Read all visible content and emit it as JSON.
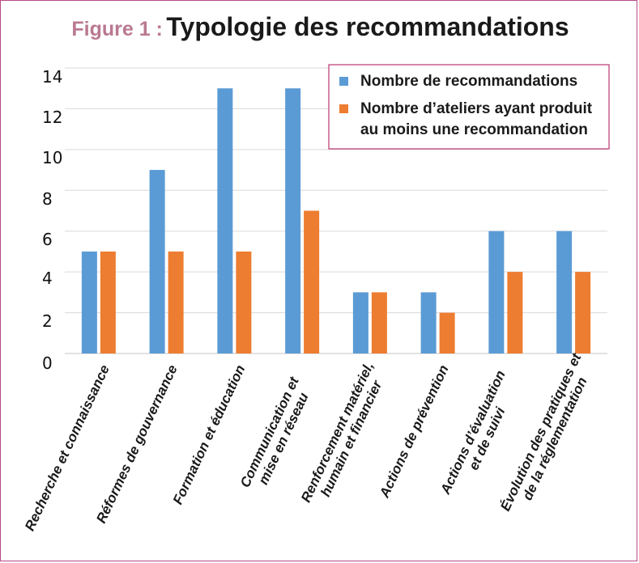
{
  "figure": {
    "label": "Figure 1 :",
    "title": "Typologie des recommandations"
  },
  "colors": {
    "series1": "#5b9bd5",
    "series2": "#ed7d31",
    "frame": "#b94a86",
    "label_accent": "#b97991",
    "grid": "#d9d9d9"
  },
  "chart_data": {
    "type": "bar",
    "title": "Typologie des recommandations",
    "xlabel": "",
    "ylabel": "",
    "ylim": [
      0,
      14
    ],
    "yticks": [
      0,
      2,
      4,
      6,
      8,
      10,
      12,
      14
    ],
    "grid": true,
    "legend_position": "top-right",
    "categories": [
      [
        "Recherche et connaissance"
      ],
      [
        "Réformes de gouvernance"
      ],
      [
        "Formation et éducation"
      ],
      [
        "Communication et",
        "mise en réseau"
      ],
      [
        "Renforcement matériel,",
        "humain et financier"
      ],
      [
        "Actions de prévention"
      ],
      [
        "Actions d’évaluation",
        "et de suivi"
      ],
      [
        "Évolution des pratiques et",
        "de la réglementation"
      ]
    ],
    "series": [
      {
        "name": "Nombre de recommandations",
        "values": [
          5,
          9,
          13,
          13,
          3,
          3,
          6,
          6
        ]
      },
      {
        "name_lines": [
          "Nombre d’ateliers ayant produit",
          "au moins une recommandation"
        ],
        "values": [
          5,
          5,
          5,
          7,
          3,
          2,
          4,
          4
        ]
      }
    ]
  }
}
